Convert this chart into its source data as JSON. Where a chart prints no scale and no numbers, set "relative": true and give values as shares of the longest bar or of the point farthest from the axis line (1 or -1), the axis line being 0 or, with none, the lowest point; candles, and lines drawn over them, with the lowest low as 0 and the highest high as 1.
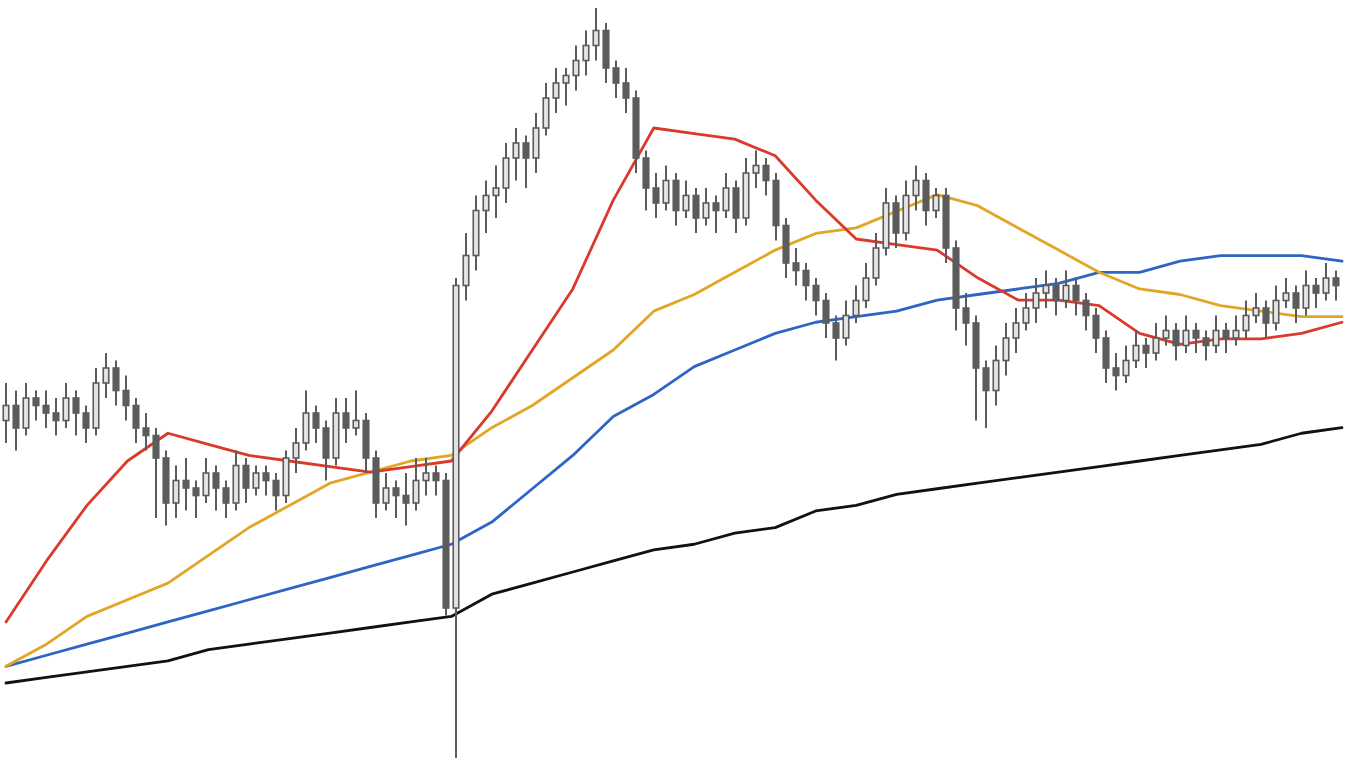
{
  "chart_data": [
    {
      "type": "candlestick",
      "relative": true,
      "categories": [
        null,
        null,
        null,
        null,
        null,
        null,
        null,
        null,
        null,
        null,
        null,
        null,
        null,
        null,
        null,
        null,
        null,
        null,
        null,
        null,
        null,
        null,
        null,
        null,
        null,
        null,
        null,
        null,
        null,
        null,
        null,
        null,
        null,
        null,
        null,
        null,
        null,
        null,
        null,
        null,
        null,
        null,
        null,
        null,
        null,
        null,
        null,
        null,
        null,
        null,
        null,
        null,
        null,
        null,
        null,
        null,
        null,
        null,
        null,
        null,
        null,
        null,
        null,
        null,
        null,
        null,
        null,
        null,
        null,
        null,
        null,
        null,
        null,
        null,
        null,
        null,
        null,
        null,
        null,
        null,
        null,
        null,
        null,
        null,
        null,
        null,
        null,
        null,
        null,
        null,
        null,
        null,
        null,
        null,
        null,
        null,
        null,
        null,
        null,
        null,
        null,
        null,
        null,
        null,
        null,
        null,
        null,
        null,
        null,
        null,
        null,
        null,
        null,
        null,
        null,
        null,
        null,
        null,
        null,
        null,
        null,
        null,
        null,
        null,
        null,
        null,
        null,
        null,
        null,
        null,
        null,
        null,
        null,
        null
      ],
      "ohlc": [
        [
          0.45,
          0.5,
          0.42,
          0.47
        ],
        [
          0.47,
          0.49,
          0.41,
          0.44
        ],
        [
          0.44,
          0.5,
          0.43,
          0.48
        ],
        [
          0.48,
          0.49,
          0.45,
          0.47
        ],
        [
          0.47,
          0.49,
          0.44,
          0.46
        ],
        [
          0.46,
          0.48,
          0.43,
          0.45
        ],
        [
          0.45,
          0.5,
          0.44,
          0.48
        ],
        [
          0.48,
          0.49,
          0.43,
          0.46
        ],
        [
          0.46,
          0.47,
          0.42,
          0.44
        ],
        [
          0.44,
          0.52,
          0.43,
          0.5
        ],
        [
          0.5,
          0.54,
          0.48,
          0.52
        ],
        [
          0.52,
          0.53,
          0.47,
          0.49
        ],
        [
          0.49,
          0.51,
          0.45,
          0.47
        ],
        [
          0.47,
          0.48,
          0.42,
          0.44
        ],
        [
          0.44,
          0.46,
          0.41,
          0.43
        ],
        [
          0.43,
          0.44,
          0.32,
          0.4
        ],
        [
          0.4,
          0.41,
          0.31,
          0.34
        ],
        [
          0.34,
          0.39,
          0.32,
          0.37
        ],
        [
          0.37,
          0.4,
          0.33,
          0.36
        ],
        [
          0.36,
          0.37,
          0.32,
          0.35
        ],
        [
          0.35,
          0.4,
          0.34,
          0.38
        ],
        [
          0.38,
          0.39,
          0.33,
          0.36
        ],
        [
          0.36,
          0.37,
          0.32,
          0.34
        ],
        [
          0.34,
          0.41,
          0.33,
          0.39
        ],
        [
          0.39,
          0.4,
          0.34,
          0.36
        ],
        [
          0.36,
          0.39,
          0.35,
          0.38
        ],
        [
          0.38,
          0.39,
          0.35,
          0.37
        ],
        [
          0.37,
          0.38,
          0.33,
          0.35
        ],
        [
          0.35,
          0.41,
          0.34,
          0.4
        ],
        [
          0.4,
          0.44,
          0.38,
          0.42
        ],
        [
          0.42,
          0.49,
          0.41,
          0.46
        ],
        [
          0.46,
          0.47,
          0.42,
          0.44
        ],
        [
          0.44,
          0.45,
          0.37,
          0.4
        ],
        [
          0.4,
          0.48,
          0.39,
          0.46
        ],
        [
          0.46,
          0.48,
          0.42,
          0.44
        ],
        [
          0.44,
          0.49,
          0.43,
          0.45
        ],
        [
          0.45,
          0.46,
          0.38,
          0.4
        ],
        [
          0.4,
          0.41,
          0.32,
          0.34
        ],
        [
          0.34,
          0.38,
          0.33,
          0.36
        ],
        [
          0.36,
          0.37,
          0.32,
          0.35
        ],
        [
          0.35,
          0.38,
          0.31,
          0.34
        ],
        [
          0.34,
          0.4,
          0.33,
          0.37
        ],
        [
          0.37,
          0.4,
          0.35,
          0.38
        ],
        [
          0.38,
          0.39,
          0.35,
          0.37
        ],
        [
          0.37,
          0.38,
          0.19,
          0.2
        ],
        [
          0.2,
          0.64,
          0,
          0.63
        ],
        [
          0.63,
          0.7,
          0.61,
          0.67
        ],
        [
          0.67,
          0.75,
          0.65,
          0.73
        ],
        [
          0.73,
          0.77,
          0.7,
          0.75
        ],
        [
          0.75,
          0.79,
          0.72,
          0.76
        ],
        [
          0.76,
          0.82,
          0.74,
          0.8
        ],
        [
          0.8,
          0.84,
          0.77,
          0.82
        ],
        [
          0.82,
          0.83,
          0.76,
          0.8
        ],
        [
          0.8,
          0.86,
          0.78,
          0.84
        ],
        [
          0.84,
          0.9,
          0.83,
          0.88
        ],
        [
          0.88,
          0.92,
          0.86,
          0.9
        ],
        [
          0.9,
          0.92,
          0.87,
          0.91
        ],
        [
          0.91,
          0.95,
          0.89,
          0.93
        ],
        [
          0.93,
          0.97,
          0.91,
          0.95
        ],
        [
          0.95,
          1,
          0.93,
          0.97
        ],
        [
          0.97,
          0.98,
          0.9,
          0.92
        ],
        [
          0.92,
          0.93,
          0.88,
          0.9
        ],
        [
          0.9,
          0.92,
          0.86,
          0.88
        ],
        [
          0.88,
          0.89,
          0.78,
          0.8
        ],
        [
          0.8,
          0.81,
          0.73,
          0.76
        ],
        [
          0.76,
          0.78,
          0.72,
          0.74
        ],
        [
          0.74,
          0.79,
          0.73,
          0.77
        ],
        [
          0.77,
          0.78,
          0.71,
          0.73
        ],
        [
          0.73,
          0.77,
          0.72,
          0.75
        ],
        [
          0.75,
          0.76,
          0.7,
          0.72
        ],
        [
          0.72,
          0.76,
          0.71,
          0.74
        ],
        [
          0.74,
          0.75,
          0.7,
          0.73
        ],
        [
          0.73,
          0.78,
          0.72,
          0.76
        ],
        [
          0.76,
          0.77,
          0.7,
          0.72
        ],
        [
          0.72,
          0.8,
          0.71,
          0.78
        ],
        [
          0.78,
          0.81,
          0.76,
          0.79
        ],
        [
          0.79,
          0.8,
          0.75,
          0.77
        ],
        [
          0.77,
          0.78,
          0.69,
          0.71
        ],
        [
          0.71,
          0.72,
          0.64,
          0.66
        ],
        [
          0.66,
          0.68,
          0.63,
          0.65
        ],
        [
          0.65,
          0.66,
          0.61,
          0.63
        ],
        [
          0.63,
          0.64,
          0.59,
          0.61
        ],
        [
          0.61,
          0.62,
          0.56,
          0.58
        ],
        [
          0.58,
          0.59,
          0.53,
          0.56
        ],
        [
          0.56,
          0.61,
          0.55,
          0.59
        ],
        [
          0.59,
          0.63,
          0.58,
          0.61
        ],
        [
          0.61,
          0.66,
          0.6,
          0.64
        ],
        [
          0.64,
          0.7,
          0.63,
          0.68
        ],
        [
          0.68,
          0.76,
          0.67,
          0.74
        ],
        [
          0.74,
          0.75,
          0.68,
          0.7
        ],
        [
          0.7,
          0.77,
          0.69,
          0.75
        ],
        [
          0.75,
          0.79,
          0.73,
          0.77
        ],
        [
          0.77,
          0.78,
          0.71,
          0.73
        ],
        [
          0.73,
          0.76,
          0.72,
          0.75
        ],
        [
          0.75,
          0.76,
          0.66,
          0.68
        ],
        [
          0.68,
          0.69,
          0.57,
          0.6
        ],
        [
          0.6,
          0.62,
          0.55,
          0.58
        ],
        [
          0.58,
          0.59,
          0.45,
          0.52
        ],
        [
          0.52,
          0.53,
          0.44,
          0.49
        ],
        [
          0.49,
          0.55,
          0.47,
          0.53
        ],
        [
          0.53,
          0.58,
          0.51,
          0.56
        ],
        [
          0.56,
          0.6,
          0.54,
          0.58
        ],
        [
          0.58,
          0.62,
          0.57,
          0.6
        ],
        [
          0.6,
          0.64,
          0.58,
          0.62
        ],
        [
          0.62,
          0.65,
          0.6,
          0.63
        ],
        [
          0.63,
          0.64,
          0.59,
          0.61
        ],
        [
          0.61,
          0.65,
          0.6,
          0.63
        ],
        [
          0.63,
          0.64,
          0.59,
          0.61
        ],
        [
          0.61,
          0.62,
          0.57,
          0.59
        ],
        [
          0.59,
          0.6,
          0.54,
          0.56
        ],
        [
          0.56,
          0.57,
          0.5,
          0.52
        ],
        [
          0.52,
          0.54,
          0.49,
          0.51
        ],
        [
          0.51,
          0.55,
          0.5,
          0.53
        ],
        [
          0.53,
          0.57,
          0.52,
          0.55
        ],
        [
          0.55,
          0.56,
          0.52,
          0.54
        ],
        [
          0.54,
          0.58,
          0.53,
          0.56
        ],
        [
          0.56,
          0.59,
          0.55,
          0.57
        ],
        [
          0.57,
          0.58,
          0.53,
          0.55
        ],
        [
          0.55,
          0.59,
          0.54,
          0.57
        ],
        [
          0.57,
          0.58,
          0.54,
          0.56
        ],
        [
          0.56,
          0.57,
          0.53,
          0.55
        ],
        [
          0.55,
          0.59,
          0.54,
          0.57
        ],
        [
          0.57,
          0.58,
          0.54,
          0.56
        ],
        [
          0.56,
          0.59,
          0.55,
          0.57
        ],
        [
          0.57,
          0.61,
          0.56,
          0.59
        ],
        [
          0.59,
          0.62,
          0.58,
          0.6
        ],
        [
          0.6,
          0.61,
          0.56,
          0.58
        ],
        [
          0.58,
          0.63,
          0.57,
          0.61
        ],
        [
          0.61,
          0.64,
          0.6,
          0.62
        ],
        [
          0.62,
          0.63,
          0.58,
          0.6
        ],
        [
          0.6,
          0.65,
          0.59,
          0.63
        ],
        [
          0.63,
          0.64,
          0.6,
          0.62
        ],
        [
          0.62,
          0.66,
          0.61,
          0.64
        ],
        [
          0.64,
          0.65,
          0.61,
          0.63
        ]
      ]
    },
    {
      "type": "line",
      "relative": true,
      "categories": [
        null,
        null,
        null,
        null,
        null,
        null,
        null,
        null,
        null,
        null,
        null,
        null,
        null,
        null,
        null,
        null,
        null,
        null,
        null,
        null,
        null,
        null,
        null,
        null,
        null,
        null,
        null,
        null,
        null,
        null,
        null,
        null,
        null,
        null
      ],
      "series": [
        {
          "color": "#111111",
          "values": [
            0,
            0.01,
            0.02,
            0.03,
            0.04,
            0.06,
            0.07,
            0.08,
            0.09,
            0.1,
            0.11,
            0.12,
            0.16,
            0.18,
            0.2,
            0.22,
            0.24,
            0.25,
            0.27,
            0.28,
            0.31,
            0.32,
            0.34,
            0.35,
            0.36,
            0.37,
            0.38,
            0.39,
            0.4,
            0.41,
            0.42,
            0.43,
            0.45,
            0.46
          ]
        },
        {
          "color": "#2e65c4",
          "values": [
            0.03,
            0.05,
            0.07,
            0.09,
            0.11,
            0.13,
            0.15,
            0.17,
            0.19,
            0.21,
            0.23,
            0.25,
            0.29,
            0.35,
            0.41,
            0.48,
            0.52,
            0.57,
            0.6,
            0.63,
            0.65,
            0.66,
            0.67,
            0.69,
            0.7,
            0.71,
            0.72,
            0.74,
            0.74,
            0.76,
            0.77,
            0.77,
            0.77,
            0.76
          ]
        },
        {
          "color": "#e2a626",
          "values": [
            0.03,
            0.07,
            0.12,
            0.15,
            0.18,
            0.23,
            0.28,
            0.32,
            0.36,
            0.38,
            0.4,
            0.41,
            0.46,
            0.5,
            0.55,
            0.6,
            0.67,
            0.7,
            0.74,
            0.78,
            0.81,
            0.82,
            0.85,
            0.88,
            0.86,
            0.82,
            0.78,
            0.74,
            0.71,
            0.7,
            0.68,
            0.67,
            0.66,
            0.66
          ]
        },
        {
          "color": "#d93a2b",
          "values": [
            0.11,
            0.22,
            0.32,
            0.4,
            0.45,
            0.43,
            0.41,
            0.4,
            0.39,
            0.38,
            0.39,
            0.4,
            0.49,
            0.6,
            0.71,
            0.87,
            1,
            0.99,
            0.98,
            0.95,
            0.87,
            0.8,
            0.79,
            0.78,
            0.73,
            0.69,
            0.69,
            0.68,
            0.63,
            0.61,
            0.62,
            0.62,
            0.63,
            0.65
          ]
        }
      ]
    }
  ]
}
